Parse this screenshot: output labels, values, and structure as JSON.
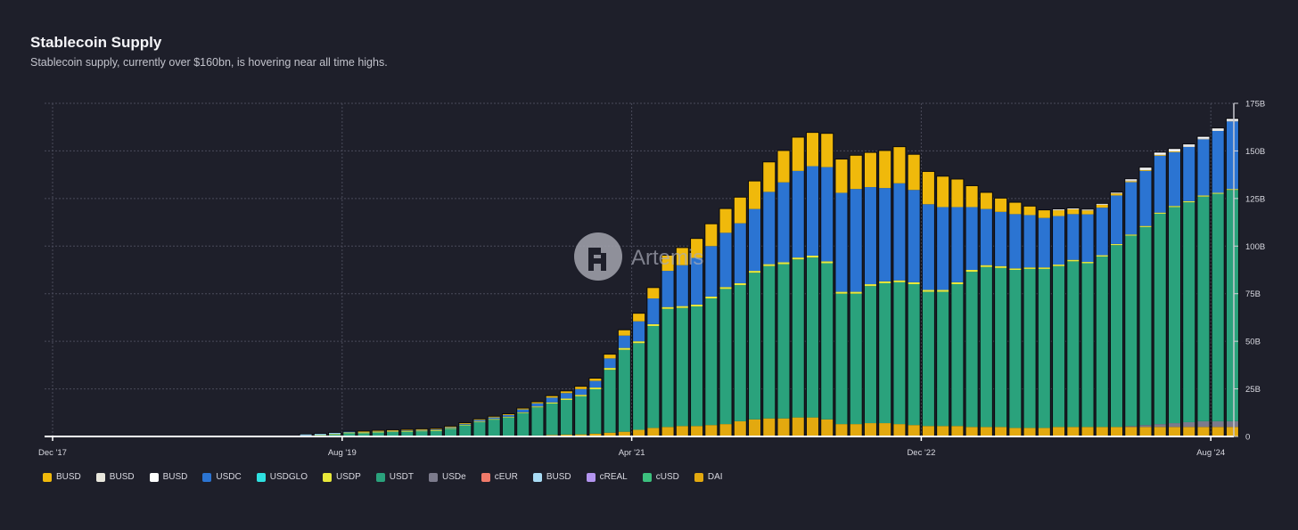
{
  "header": {
    "title": "Stablecoin Supply",
    "subtitle": "Stablecoin supply, currently over $160bn, is hovering near all time highs."
  },
  "watermark": {
    "text": "Artemis",
    "icon": "artemis-logo-icon"
  },
  "chart_data": {
    "type": "bar",
    "stacked": true,
    "title": "Stablecoin Supply",
    "xlabel": "",
    "ylabel": "",
    "ylim": [
      0,
      175
    ],
    "y_unit": "B",
    "y_ticks": [
      "0",
      "25B",
      "50B",
      "75B",
      "100B",
      "125B",
      "150B",
      "175B"
    ],
    "y_tick_values": [
      0,
      25,
      50,
      75,
      100,
      125,
      150,
      175
    ],
    "x_tick_labels": [
      "Dec '17",
      "Aug '19",
      "Apr '21",
      "Dec '22",
      "Aug '24"
    ],
    "x_tick_months": [
      "2017-12",
      "2019-08",
      "2021-04",
      "2022-12",
      "2024-08"
    ],
    "x_range": [
      "2017-11",
      "2024-10"
    ],
    "grid": true,
    "legend_position": "bottom-left",
    "categories": [
      "2019-05",
      "2019-06",
      "2019-07",
      "2019-08",
      "2019-09",
      "2019-10",
      "2019-11",
      "2019-12",
      "2020-01",
      "2020-02",
      "2020-03",
      "2020-04",
      "2020-05",
      "2020-06",
      "2020-07",
      "2020-08",
      "2020-09",
      "2020-10",
      "2020-11",
      "2020-12",
      "2021-01",
      "2021-02",
      "2021-03",
      "2021-04",
      "2021-05",
      "2021-06",
      "2021-07",
      "2021-08",
      "2021-09",
      "2021-10",
      "2021-11",
      "2021-12",
      "2022-01",
      "2022-02",
      "2022-03",
      "2022-04",
      "2022-05",
      "2022-06",
      "2022-07",
      "2022-08",
      "2022-09",
      "2022-10",
      "2022-11",
      "2022-12",
      "2023-01",
      "2023-02",
      "2023-03",
      "2023-04",
      "2023-05",
      "2023-06",
      "2023-07",
      "2023-08",
      "2023-09",
      "2023-10",
      "2023-11",
      "2023-12",
      "2024-01",
      "2024-02",
      "2024-03",
      "2024-04",
      "2024-05",
      "2024-06",
      "2024-07",
      "2024-08",
      "2024-09"
    ],
    "series": [
      {
        "name": "DAI",
        "color": "#e3a90f",
        "values": [
          0.1,
          0.1,
          0.1,
          0.1,
          0.1,
          0.1,
          0.1,
          0.1,
          0.1,
          0.1,
          0.1,
          0.1,
          0.1,
          0.1,
          0.2,
          0.3,
          0.5,
          0.8,
          1.0,
          1.1,
          1.5,
          2.0,
          2.5,
          3.5,
          4.5,
          5.0,
          5.5,
          5.5,
          6.0,
          6.5,
          8.0,
          9.0,
          9.5,
          9.5,
          10.0,
          10.0,
          9.0,
          6.5,
          6.5,
          7.0,
          7.0,
          6.5,
          6.0,
          5.5,
          5.5,
          5.5,
          5.0,
          5.0,
          5.0,
          4.5,
          4.5,
          4.5,
          5.0,
          5.0,
          5.0,
          5.0,
          5.0,
          5.0,
          5.0,
          5.0,
          5.0,
          5.0,
          5.0,
          5.0,
          5.0
        ]
      },
      {
        "name": "USDe",
        "color": "#7c7b8c",
        "values": [
          0,
          0,
          0,
          0,
          0,
          0,
          0,
          0,
          0,
          0,
          0,
          0,
          0,
          0,
          0,
          0,
          0,
          0,
          0,
          0,
          0,
          0,
          0,
          0,
          0,
          0,
          0,
          0,
          0,
          0,
          0,
          0,
          0,
          0,
          0,
          0,
          0,
          0,
          0,
          0,
          0,
          0,
          0,
          0,
          0,
          0,
          0,
          0,
          0,
          0,
          0,
          0,
          0,
          0,
          0,
          0,
          0,
          0.5,
          1.0,
          1.5,
          2.0,
          2.5,
          3.0,
          3.0,
          3.0
        ]
      },
      {
        "name": "USDT",
        "color": "#2aa27c",
        "values": [
          0.5,
          0.8,
          1.2,
          1.8,
          1.8,
          2.2,
          2.4,
          2.6,
          2.8,
          3.0,
          4.0,
          5.8,
          7.5,
          8.8,
          9.8,
          12.0,
          14.8,
          16.5,
          18.2,
          20.0,
          23.3,
          33.0,
          43.0,
          45.5,
          53.5,
          62.0,
          62.0,
          62.8,
          66.5,
          71.0,
          71.5,
          77.0,
          80.0,
          81.0,
          83.0,
          84.0,
          82.0,
          68.5,
          68.5,
          72.0,
          73.5,
          74.5,
          74.0,
          70.5,
          70.5,
          74.5,
          81.5,
          84.0,
          83.5,
          83.0,
          83.5,
          83.5,
          84.5,
          87.0,
          86.0,
          89.5,
          95.5,
          100.0,
          104.0,
          110.5,
          113.5,
          115.5,
          118.0,
          119.5,
          121.5
        ]
      },
      {
        "name": "USDP",
        "color": "#e8e83a",
        "values": [
          0.1,
          0.1,
          0.1,
          0.2,
          0.2,
          0.2,
          0.2,
          0.2,
          0.2,
          0.2,
          0.3,
          0.3,
          0.3,
          0.3,
          0.4,
          0.4,
          0.5,
          0.6,
          0.7,
          0.8,
          0.9,
          1.0,
          1.0,
          1.0,
          1.0,
          1.0,
          1.0,
          1.0,
          1.0,
          1.0,
          1.0,
          1.0,
          1.0,
          1.0,
          1.0,
          1.0,
          1.0,
          1.0,
          1.0,
          1.0,
          1.0,
          1.0,
          1.0,
          1.0,
          1.0,
          1.0,
          1.0,
          1.0,
          1.0,
          0.8,
          0.8,
          0.8,
          0.8,
          0.8,
          0.7,
          0.7,
          0.6,
          0.6,
          0.6,
          0.6,
          0.6,
          0.6,
          0.6,
          0.5,
          0.5
        ]
      },
      {
        "name": "USDC",
        "color": "#2b74d2",
        "values": [
          0.2,
          0.2,
          0.3,
          0.4,
          0.4,
          0.4,
          0.5,
          0.5,
          0.5,
          0.5,
          0.5,
          0.5,
          0.8,
          0.8,
          0.9,
          1.5,
          1.6,
          2.5,
          2.9,
          3.0,
          3.5,
          5.0,
          6.5,
          10.5,
          13.5,
          19.0,
          21.5,
          24.5,
          26.5,
          28.5,
          31.5,
          32.5,
          38.0,
          42.0,
          45.5,
          47.0,
          49.5,
          52.0,
          54.0,
          51.0,
          49.0,
          51.0,
          48.5,
          45.0,
          43.5,
          39.5,
          33.0,
          29.5,
          28.5,
          28.5,
          27.5,
          26.0,
          25.5,
          24.0,
          25.0,
          25.0,
          25.5,
          27.5,
          29.0,
          30.0,
          28.5,
          28.5,
          29.5,
          32.5,
          35.5
        ]
      },
      {
        "name": "BUSD",
        "color": "#f0b90b",
        "values": [
          0.0,
          0.0,
          0.0,
          0.0,
          0.1,
          0.1,
          0.1,
          0.1,
          0.2,
          0.2,
          0.3,
          0.3,
          0.3,
          0.4,
          0.4,
          0.5,
          0.6,
          0.8,
          0.9,
          1.2,
          1.2,
          2.0,
          2.8,
          4.0,
          5.5,
          8.0,
          9.0,
          10.0,
          11.5,
          12.5,
          13.5,
          14.5,
          15.5,
          16.5,
          17.5,
          17.5,
          17.5,
          17.5,
          17.5,
          18.0,
          19.5,
          19.0,
          18.5,
          17.0,
          16.0,
          14.5,
          11.0,
          8.5,
          7.0,
          6.0,
          4.5,
          4.0,
          3.0,
          2.5,
          2.0,
          1.5,
          1.0,
          0.5,
          0.3,
          0.2,
          0.1,
          0.0,
          0.0,
          0.0,
          0.0
        ]
      },
      {
        "name": "BUSD",
        "color": "#e8e6dc",
        "values": [
          0,
          0,
          0,
          0,
          0,
          0,
          0,
          0,
          0,
          0,
          0,
          0,
          0,
          0,
          0,
          0,
          0,
          0,
          0,
          0,
          0,
          0,
          0,
          0,
          0,
          0,
          0,
          0,
          0,
          0,
          0,
          0,
          0,
          0,
          0,
          0,
          0,
          0,
          0,
          0,
          0,
          0,
          0,
          0,
          0,
          0,
          0,
          0,
          0,
          0,
          0,
          0,
          0.5,
          0.5,
          0.5,
          0.5,
          0.5,
          0.5,
          0.5,
          0.5,
          0.5,
          0.5,
          0.5,
          0.5,
          0.5
        ]
      },
      {
        "name": "BUSD",
        "color": "#ffffff",
        "values": [
          0,
          0,
          0,
          0,
          0,
          0,
          0,
          0,
          0,
          0,
          0,
          0,
          0,
          0,
          0,
          0,
          0,
          0,
          0,
          0,
          0,
          0,
          0,
          0,
          0,
          0,
          0,
          0,
          0,
          0,
          0,
          0,
          0,
          0,
          0,
          0,
          0,
          0,
          0,
          0,
          0,
          0,
          0,
          0,
          0,
          0,
          0,
          0,
          0,
          0,
          0,
          0,
          0,
          0,
          0,
          0,
          0,
          0.5,
          0.8,
          0.8,
          0.8,
          0.8,
          0.8,
          0.8,
          0.8
        ]
      },
      {
        "name": "USDGLO",
        "color": "#2ee0e0",
        "values": [
          0,
          0,
          0,
          0,
          0,
          0,
          0,
          0,
          0,
          0,
          0,
          0,
          0,
          0,
          0,
          0,
          0,
          0,
          0,
          0,
          0,
          0,
          0,
          0,
          0,
          0,
          0,
          0,
          0,
          0,
          0,
          0,
          0,
          0,
          0,
          0,
          0,
          0,
          0,
          0,
          0,
          0,
          0,
          0,
          0,
          0,
          0,
          0,
          0,
          0,
          0,
          0,
          0,
          0,
          0,
          0,
          0,
          0,
          0,
          0,
          0,
          0,
          0,
          0,
          0
        ]
      },
      {
        "name": "cEUR",
        "color": "#f07a6a",
        "values": [
          0,
          0,
          0,
          0,
          0,
          0,
          0,
          0,
          0,
          0,
          0,
          0,
          0,
          0,
          0,
          0,
          0,
          0,
          0,
          0,
          0,
          0,
          0,
          0,
          0,
          0,
          0,
          0,
          0,
          0,
          0,
          0,
          0,
          0,
          0,
          0,
          0,
          0,
          0,
          0,
          0,
          0,
          0,
          0,
          0,
          0,
          0,
          0,
          0,
          0,
          0,
          0,
          0,
          0,
          0,
          0,
          0,
          0,
          0,
          0,
          0,
          0,
          0,
          0,
          0
        ]
      },
      {
        "name": "BUSD",
        "color": "#a9dcf5",
        "values": [
          0.2,
          0.2,
          0.2,
          0,
          0,
          0,
          0,
          0,
          0,
          0,
          0,
          0,
          0,
          0,
          0,
          0,
          0,
          0,
          0,
          0,
          0,
          0,
          0,
          0,
          0,
          0,
          0,
          0,
          0,
          0,
          0,
          0,
          0,
          0,
          0,
          0,
          0,
          0,
          0,
          0,
          0,
          0,
          0,
          0,
          0,
          0,
          0,
          0,
          0,
          0,
          0,
          0,
          0,
          0,
          0,
          0,
          0,
          0,
          0,
          0,
          0,
          0,
          0,
          0,
          0
        ]
      },
      {
        "name": "cREAL",
        "color": "#b394ef",
        "values": [
          0,
          0,
          0,
          0,
          0,
          0,
          0,
          0,
          0,
          0,
          0,
          0,
          0,
          0,
          0,
          0,
          0,
          0,
          0,
          0,
          0,
          0,
          0,
          0,
          0,
          0,
          0,
          0,
          0,
          0,
          0,
          0,
          0,
          0,
          0,
          0,
          0,
          0,
          0,
          0,
          0,
          0,
          0,
          0,
          0,
          0,
          0,
          0,
          0,
          0,
          0,
          0,
          0,
          0,
          0,
          0,
          0,
          0,
          0,
          0,
          0,
          0,
          0,
          0,
          0
        ]
      },
      {
        "name": "cUSD",
        "color": "#3cc07e",
        "values": [
          0,
          0,
          0,
          0,
          0,
          0,
          0,
          0,
          0,
          0,
          0,
          0,
          0,
          0,
          0,
          0,
          0,
          0,
          0,
          0,
          0,
          0,
          0,
          0,
          0,
          0,
          0,
          0,
          0,
          0,
          0,
          0,
          0,
          0,
          0,
          0,
          0,
          0,
          0,
          0,
          0,
          0,
          0,
          0,
          0,
          0,
          0,
          0,
          0,
          0,
          0,
          0,
          0,
          0,
          0,
          0,
          0,
          0,
          0,
          0,
          0,
          0,
          0,
          0,
          0
        ]
      }
    ],
    "stack_order": [
      "DAI",
      "USDe",
      "USDT",
      "USDP",
      "USDC",
      "BUSD",
      "BUSD",
      "BUSD",
      "USDGLO",
      "cEUR",
      "BUSD",
      "cREAL",
      "cUSD"
    ],
    "legend": [
      {
        "label": "BUSD",
        "color": "#f0b90b"
      },
      {
        "label": "BUSD",
        "color": "#e8e6dc"
      },
      {
        "label": "BUSD",
        "color": "#ffffff"
      },
      {
        "label": "USDC",
        "color": "#2b74d2"
      },
      {
        "label": "USDGLO",
        "color": "#2ee0e0"
      },
      {
        "label": "USDP",
        "color": "#e8e83a"
      },
      {
        "label": "USDT",
        "color": "#2aa27c"
      },
      {
        "label": "USDe",
        "color": "#7c7b8c"
      },
      {
        "label": "cEUR",
        "color": "#f07a6a"
      },
      {
        "label": "BUSD",
        "color": "#a9dcf5"
      },
      {
        "label": "cREAL",
        "color": "#b394ef"
      },
      {
        "label": "cUSD",
        "color": "#3cc07e"
      },
      {
        "label": "DAI",
        "color": "#e3a90f"
      }
    ]
  }
}
